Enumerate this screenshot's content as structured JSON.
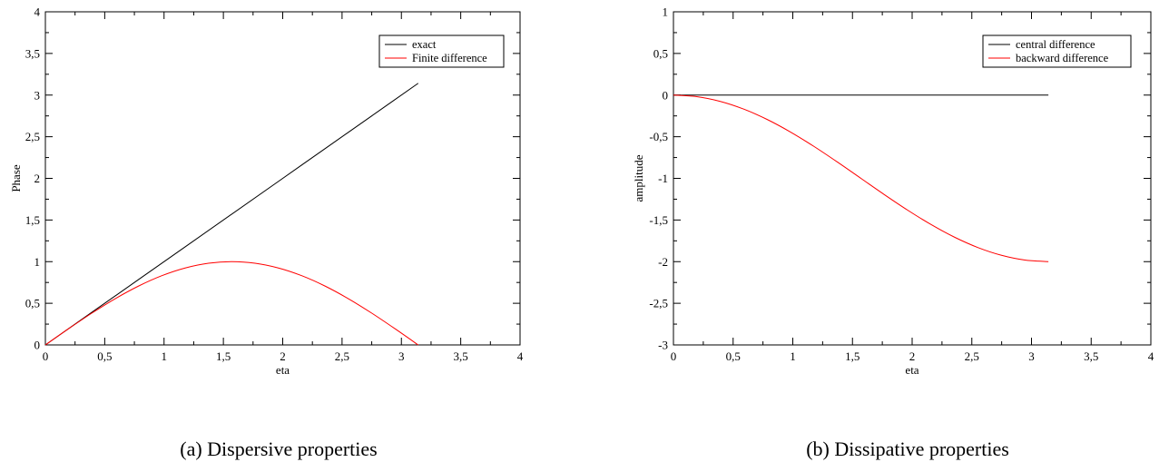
{
  "chart_data": [
    {
      "type": "line",
      "id": "a",
      "caption": "(a)  Dispersive properties",
      "xlabel": "eta",
      "ylabel": "Phase",
      "xlim": [
        0,
        4
      ],
      "ylim": [
        0,
        4
      ],
      "xticks": [
        0,
        0.5,
        1,
        1.5,
        2,
        2.5,
        3,
        3.5,
        4
      ],
      "yticks": [
        0,
        0.5,
        1,
        1.5,
        2,
        2.5,
        3,
        3.5,
        4
      ],
      "xtick_labels": [
        "0",
        "0,5",
        "1",
        "1,5",
        "2",
        "2,5",
        "3",
        "3,5",
        "4"
      ],
      "ytick_labels": [
        "0",
        "0,5",
        "1",
        "1,5",
        "2",
        "2,5",
        "3",
        "3,5",
        "4"
      ],
      "legend_position": "top-right",
      "series": [
        {
          "name": "exact",
          "color": "#000000",
          "x": [
            0,
            0.3927,
            0.7854,
            1.1781,
            1.5708,
            1.9635,
            2.3562,
            2.7489,
            3.1416
          ],
          "y": [
            0,
            0.3927,
            0.7854,
            1.1781,
            1.5708,
            1.9635,
            2.3562,
            2.7489,
            3.1416
          ]
        },
        {
          "name": "Finite difference",
          "color": "#ff0000",
          "x": [
            0,
            0.1963,
            0.3927,
            0.589,
            0.7854,
            0.9817,
            1.1781,
            1.3744,
            1.5708,
            1.7671,
            1.9635,
            2.1598,
            2.3562,
            2.5525,
            2.7489,
            2.9452,
            3.1416
          ],
          "y": [
            0,
            0.1951,
            0.3827,
            0.5556,
            0.7071,
            0.8315,
            0.9239,
            0.9808,
            1.0,
            0.9808,
            0.9239,
            0.8315,
            0.7071,
            0.5556,
            0.3827,
            0.1951,
            0
          ]
        }
      ]
    },
    {
      "type": "line",
      "id": "b",
      "caption": "(b)  Dissipative properties",
      "xlabel": "eta",
      "ylabel": "amplitude",
      "xlim": [
        0,
        4
      ],
      "ylim": [
        -3,
        1
      ],
      "xticks": [
        0,
        0.5,
        1,
        1.5,
        2,
        2.5,
        3,
        3.5,
        4
      ],
      "yticks": [
        -3,
        -2.5,
        -2,
        -1.5,
        -1,
        -0.5,
        0,
        0.5,
        1
      ],
      "xtick_labels": [
        "0",
        "0,5",
        "1",
        "1,5",
        "2",
        "2,5",
        "3",
        "3,5",
        "4"
      ],
      "ytick_labels": [
        "-3",
        "-2,5",
        "-2",
        "-1,5",
        "-1",
        "-0,5",
        "0",
        "0,5",
        "1"
      ],
      "legend_position": "top-right",
      "series": [
        {
          "name": "central difference",
          "color": "#000000",
          "x": [
            0,
            3.1416
          ],
          "y": [
            0,
            0
          ]
        },
        {
          "name": "backward difference",
          "color": "#ff0000",
          "x": [
            0,
            0.1963,
            0.3927,
            0.589,
            0.7854,
            0.9817,
            1.1781,
            1.3744,
            1.5708,
            1.7671,
            1.9635,
            2.1598,
            2.3562,
            2.5525,
            2.7489,
            2.9452,
            3.1416
          ],
          "y": [
            0,
            -0.0192,
            -0.0761,
            -0.1685,
            -0.2929,
            -0.4444,
            -0.6173,
            -0.8049,
            -1.0,
            -1.1951,
            -1.3827,
            -1.5556,
            -1.7071,
            -1.8315,
            -1.9239,
            -1.9808,
            -2.0
          ]
        }
      ]
    }
  ]
}
